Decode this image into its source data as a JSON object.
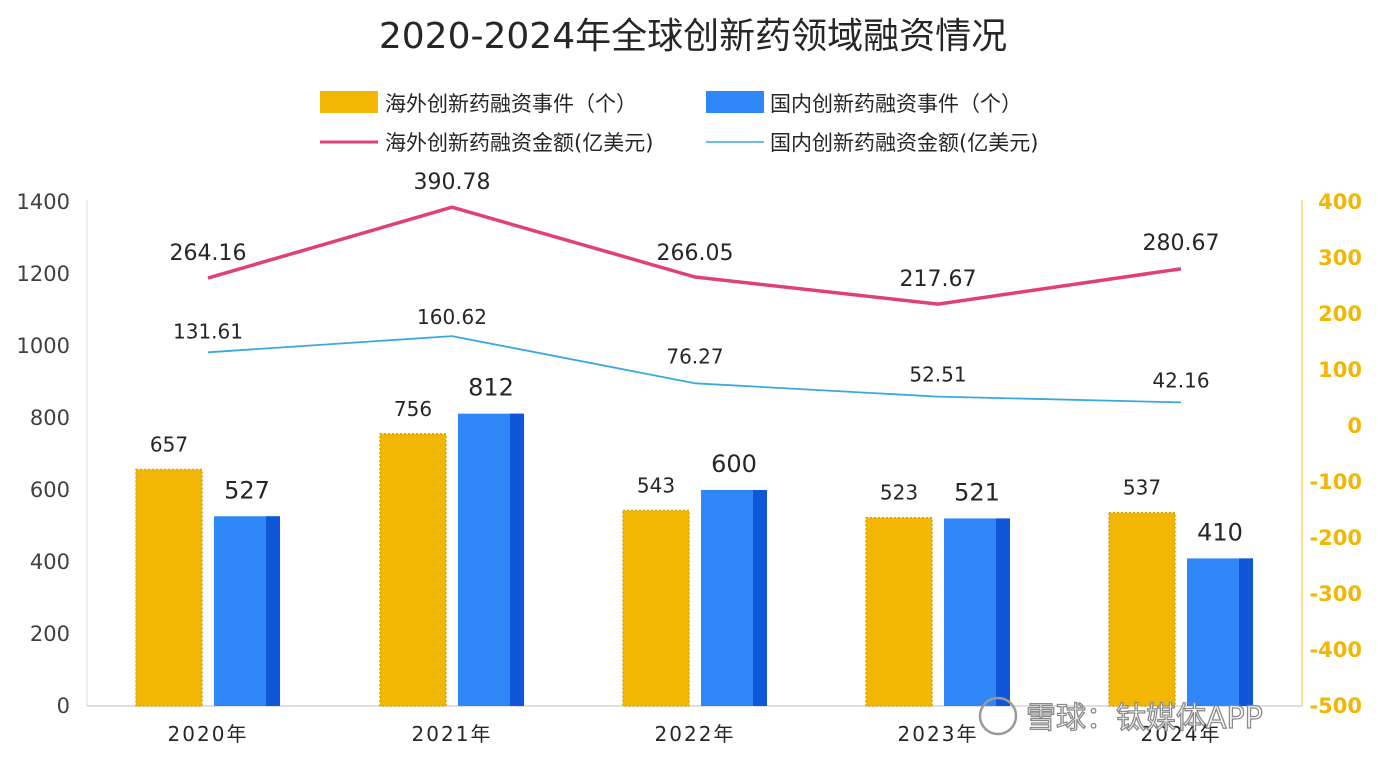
{
  "chart_data": {
    "type": "bar",
    "title": "2020-2024年全球创新药领域融资情况",
    "categories": [
      "2020年",
      "2021年",
      "2022年",
      "2023年",
      "2024年"
    ],
    "bar_series": [
      {
        "name": "海外创新药融资事件（个）",
        "color": "#f2b705",
        "values": [
          657,
          756,
          543,
          523,
          537
        ],
        "labels": [
          "657",
          "756",
          "543",
          "523",
          "537"
        ]
      },
      {
        "name": "国内创新药融资事件（个）",
        "color": "#2f86f6",
        "values": [
          527,
          812,
          600,
          521,
          410
        ],
        "labels": [
          "527",
          "812",
          "600",
          "521",
          "410"
        ]
      }
    ],
    "line_series": [
      {
        "name": "海外创新药融资金额(亿美元)",
        "color": "#e0407a",
        "axis": "right",
        "values": [
          264.16,
          390.78,
          266.05,
          217.67,
          280.67
        ],
        "labels": [
          "264.16",
          "390.78",
          "266.05",
          "217.67",
          "280.67"
        ]
      },
      {
        "name": "国内创新药融资金额(亿美元)",
        "color": "#3aa8e0",
        "axis": "right",
        "values": [
          131.61,
          160.62,
          76.27,
          52.51,
          42.16
        ],
        "labels": [
          "131.61",
          "160.62",
          "76.27",
          "52.51",
          "42.16"
        ]
      }
    ],
    "y_left": {
      "min": 0,
      "max": 1400,
      "ticks": [
        "0",
        "200",
        "400",
        "600",
        "800",
        "1000",
        "1200",
        "1400"
      ]
    },
    "y_right": {
      "min": -500,
      "max": 400,
      "ticks": [
        "-500",
        "-400",
        "-300",
        "-200",
        "-100",
        "0",
        "100",
        "200",
        "300",
        "400"
      ]
    },
    "legend_position": "top",
    "grid": false
  },
  "watermark": {
    "text": "雪球：钛媒体APP"
  }
}
